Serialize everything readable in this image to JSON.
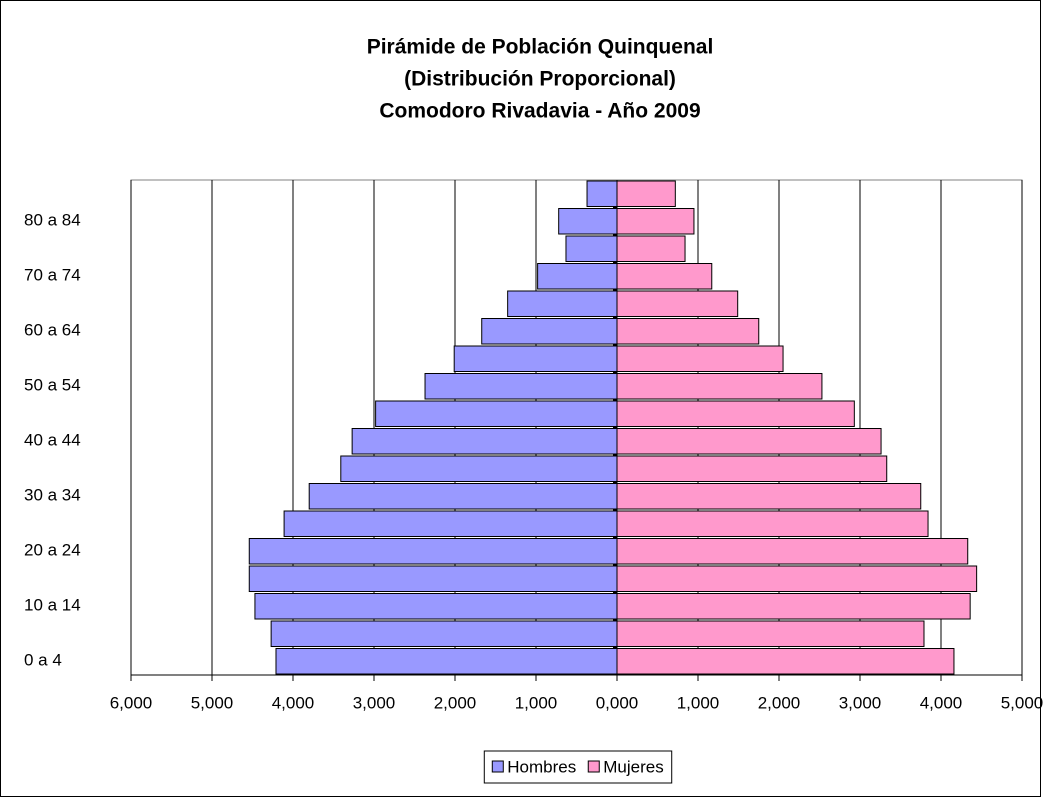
{
  "chart_data": {
    "type": "pyramid",
    "title": [
      "Pirámide de Población Quinquenal",
      "(Distribución Proporcional)",
      "Comodoro Rivadavia - Año 2009"
    ],
    "categories": [
      "0 a 4",
      null,
      "10 a 14",
      null,
      "20 a 24",
      null,
      "30 a 34",
      null,
      "40 a 44",
      null,
      "50 a 54",
      null,
      "60 a 64",
      null,
      "70 a 74",
      null,
      "80 a 84",
      null
    ],
    "series": [
      {
        "name": "Hombres",
        "color": "#9999ff",
        "values": [
          -4.21,
          -4.27,
          -4.47,
          -4.54,
          -4.54,
          -4.11,
          -3.8,
          -3.41,
          -3.27,
          -2.98,
          -2.37,
          -2.01,
          -1.67,
          -1.35,
          -0.98,
          -0.63,
          -0.72,
          -0.37
        ]
      },
      {
        "name": "Mujeres",
        "color": "#ff99cc",
        "values": [
          4.16,
          3.79,
          4.36,
          4.44,
          4.33,
          3.84,
          3.75,
          3.33,
          3.26,
          2.93,
          2.53,
          2.05,
          1.75,
          1.49,
          1.17,
          0.84,
          0.95,
          0.72
        ]
      }
    ],
    "xlim": [
      -6,
      5
    ],
    "xticks": [
      {
        "value": -6,
        "label": "6,000"
      },
      {
        "value": -5,
        "label": "5,000"
      },
      {
        "value": -4,
        "label": "4,000"
      },
      {
        "value": -3,
        "label": "3,000"
      },
      {
        "value": -2,
        "label": "2,000"
      },
      {
        "value": -1,
        "label": "1,000"
      },
      {
        "value": 0,
        "label": "0,000"
      },
      {
        "value": 1,
        "label": "1,000"
      },
      {
        "value": 2,
        "label": "2,000"
      },
      {
        "value": 3,
        "label": "3,000"
      },
      {
        "value": 4,
        "label": "4,000"
      },
      {
        "value": 5,
        "label": "5,000"
      }
    ],
    "grid": true,
    "legend": "bottom"
  }
}
